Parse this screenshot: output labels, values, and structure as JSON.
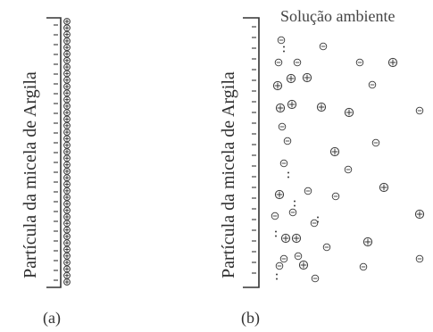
{
  "panel_a": {
    "particle_label": "Partícula da micela de Argila",
    "caption": "(a)"
  },
  "panel_b": {
    "particle_label": "Partícula da micela de Argila",
    "solution_label": "Solução ambiente",
    "caption": "(b)"
  },
  "symbols": {
    "negative": "−",
    "positive": "⊕",
    "neutral_small": ":"
  },
  "colors": {
    "stroke": "#333333",
    "ion": "#3a3a3a"
  }
}
